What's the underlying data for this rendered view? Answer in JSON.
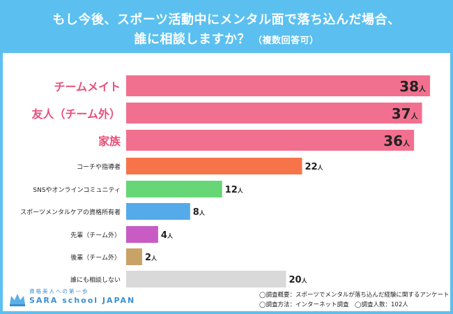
{
  "header": {
    "title_line1": "もし今後、スポーツ活動中にメンタル面で落ち込んだ場合、",
    "title_line2": "誰に相談しますか？",
    "title_sub": "（複数回答可）"
  },
  "colors": {
    "header_bg": "#5bc0f0",
    "highlight_label": "#e94f79",
    "normal_label": "#222222"
  },
  "chart_data": {
    "type": "bar",
    "orientation": "horizontal",
    "title": "もし今後、スポーツ活動中にメンタル面で落ち込んだ場合、誰に相談しますか？（複数回答可）",
    "unit": "人",
    "xlim": [
      0,
      40
    ],
    "categories": [
      "チームメイト",
      "友人（チーム外）",
      "家族",
      "コーチや指導者",
      "SNSやオンラインコミュニティ",
      "スポーツメンタルケアの資格所有者",
      "先輩（チーム外）",
      "後輩（チーム外）",
      "誰にも相談しない"
    ],
    "values": [
      38,
      37,
      36,
      22,
      12,
      8,
      4,
      2,
      20
    ],
    "bar_colors": [
      "#f2708f",
      "#f2708f",
      "#f2708f",
      "#f7744a",
      "#67d676",
      "#55aaea",
      "#c85bc4",
      "#c9a267",
      "#d9d9d9"
    ],
    "highlight_top": 3
  },
  "footer": {
    "note1": "◯調査概要：スポーツでメンタルが落ち込んだ経験に関するアンケート",
    "note2": "◯調査方法：インターネット調査　◯調査人数：102人"
  },
  "logo": {
    "tagline": "資格美人への第一歩",
    "name": "SARA school JAPAN",
    "icon": "crown-icon"
  }
}
